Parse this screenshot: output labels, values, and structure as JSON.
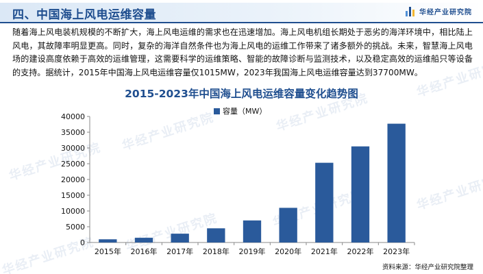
{
  "header": {
    "section_title": "四、中国海上风电运维容量",
    "brand": "华经产业研究院"
  },
  "intro_text": "随着海上风电装机规模的不断扩大，海上风电运维的需求也在迅速增加。海上风电机组长期处于恶劣的海洋环境中，相比陆上风电，其故障率明显更高。同时，复杂的海洋自然条件也为海上风电的运维工作带来了诸多额外的挑战。未来，智慧海上风电场的建设高度依赖于高效的运维管理，这需要科学的运维策略、智能的故障诊断与监测技术，以及稳定高效的运维船只等设备的支持。据统计，2015年中国海上风电运维容量仅1015MW，2023年我国海上风电运维容量达到37700MW。",
  "watermark": "华经产业研究院",
  "source": "资料来源：华经产业研究院整理",
  "colors": {
    "bar": "#2a5a9b",
    "title": "#1f4e8f"
  },
  "chart_data": {
    "type": "bar",
    "title": "2015-2023年中国海上风电运维容量变化趋势图",
    "categories": [
      "2015年",
      "2016年",
      "2017年",
      "2018年",
      "2019年",
      "2020年",
      "2021年",
      "2022年",
      "2023年"
    ],
    "series": [
      {
        "name": "容量（MW）",
        "values": [
          1015,
          1500,
          2800,
          4500,
          7000,
          11000,
          25300,
          30500,
          37700
        ]
      }
    ],
    "yticks": [
      "0",
      "5000",
      "10000",
      "15000",
      "20000",
      "25000",
      "30000",
      "35000",
      "40000"
    ],
    "ylim": [
      0,
      40000
    ],
    "legend_position": "top-center",
    "grid": false
  }
}
